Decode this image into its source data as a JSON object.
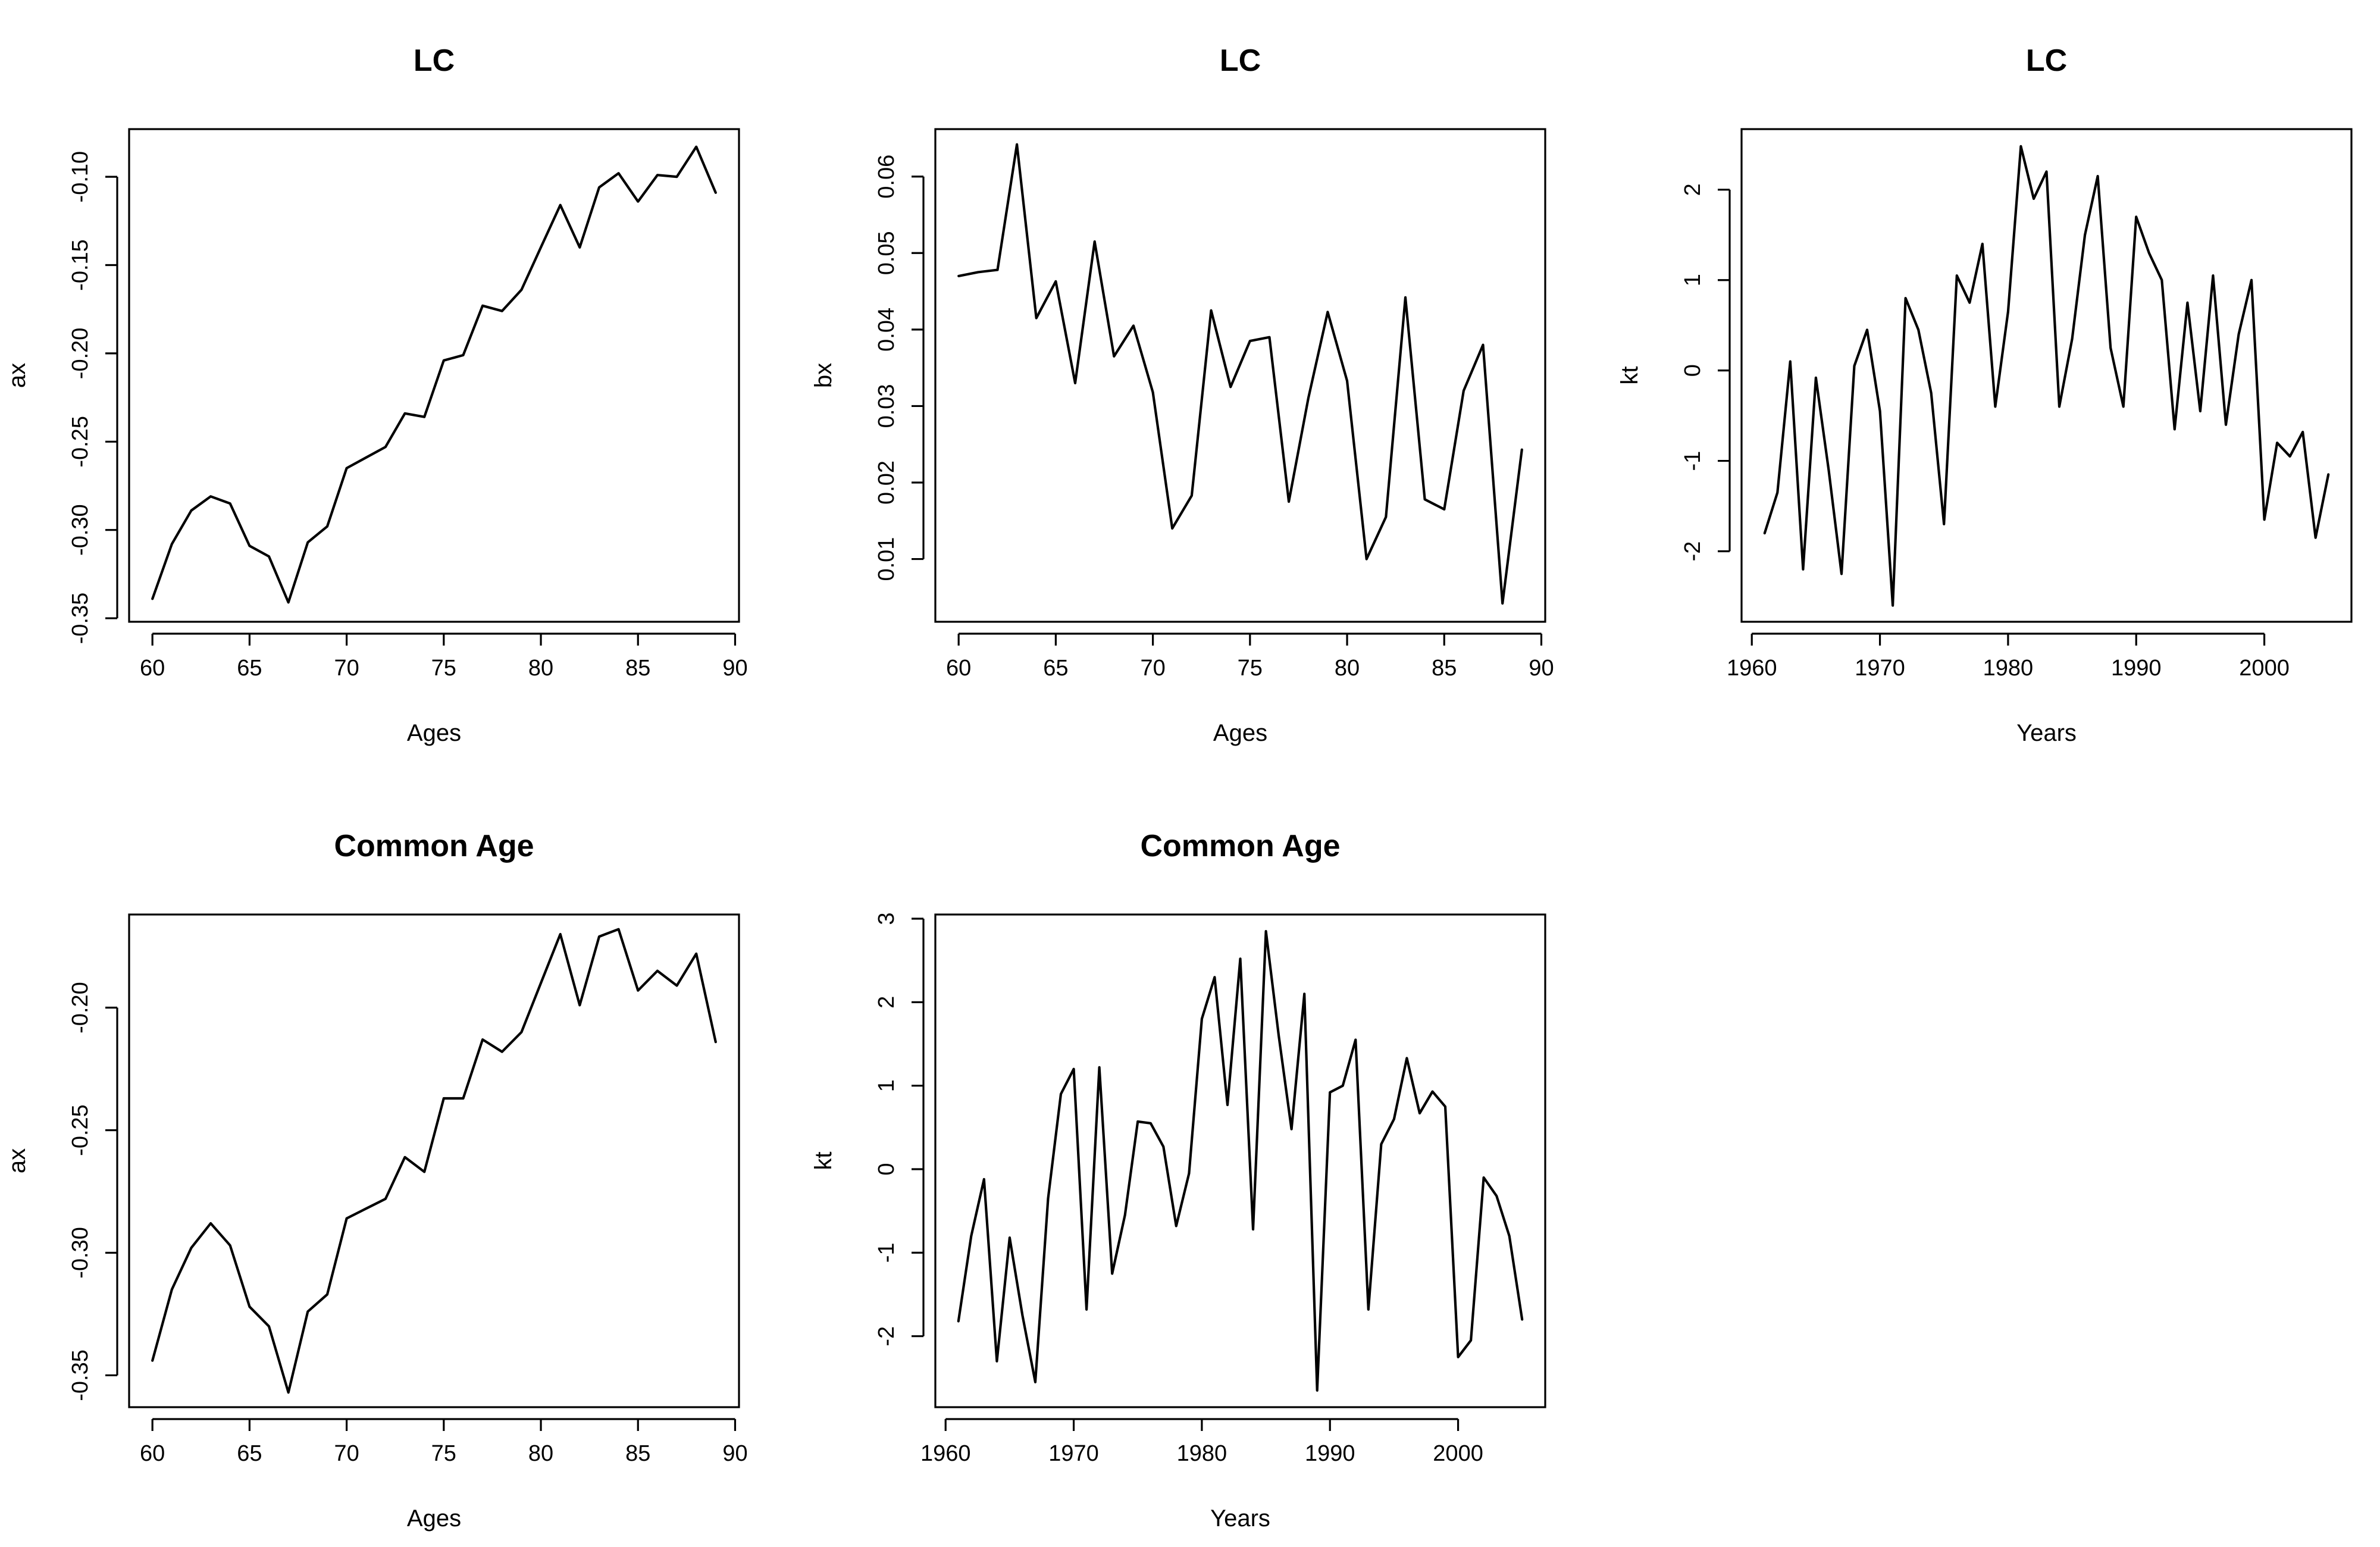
{
  "chart_data": [
    {
      "type": "line",
      "title": "LC",
      "xlabel": "Ages",
      "ylabel": "ax",
      "xlim": [
        58.8,
        90.2
      ],
      "ylim": [
        -0.352,
        -0.073
      ],
      "xticks": [
        60,
        65,
        70,
        75,
        80,
        85,
        90
      ],
      "xtick_labels": [
        "60",
        "65",
        "70",
        "75",
        "80",
        "85",
        "90"
      ],
      "yticks": [
        -0.35,
        -0.3,
        -0.25,
        -0.2,
        -0.15,
        -0.1
      ],
      "ytick_labels": [
        "-0.35",
        "-0.30",
        "-0.25",
        "-0.20",
        "-0.15",
        "-0.10"
      ],
      "grid": false,
      "x": [
        60,
        61,
        62,
        63,
        64,
        65,
        66,
        67,
        68,
        69,
        70,
        71,
        72,
        73,
        74,
        75,
        76,
        77,
        78,
        79,
        80,
        81,
        82,
        83,
        84,
        85,
        86,
        87,
        88,
        89
      ],
      "values": [
        -0.339,
        -0.308,
        -0.289,
        -0.281,
        -0.285,
        -0.309,
        -0.315,
        -0.341,
        -0.307,
        -0.298,
        -0.265,
        -0.259,
        -0.253,
        -0.234,
        -0.236,
        -0.204,
        -0.201,
        -0.173,
        -0.176,
        -0.164,
        -0.14,
        -0.116,
        -0.14,
        -0.106,
        -0.098,
        -0.114,
        -0.099,
        -0.1,
        -0.083,
        -0.109
      ]
    },
    {
      "type": "line",
      "title": "LC",
      "xlabel": "Ages",
      "ylabel": "bx",
      "xlim": [
        58.8,
        90.2
      ],
      "ylim": [
        0.0018,
        0.0662
      ],
      "xticks": [
        60,
        65,
        70,
        75,
        80,
        85,
        90
      ],
      "xtick_labels": [
        "60",
        "65",
        "70",
        "75",
        "80",
        "85",
        "90"
      ],
      "yticks": [
        0.01,
        0.02,
        0.03,
        0.04,
        0.05,
        0.06
      ],
      "ytick_labels": [
        "0.01",
        "0.02",
        "0.03",
        "0.04",
        "0.05",
        "0.06"
      ],
      "grid": false,
      "x": [
        60,
        61,
        62,
        63,
        64,
        65,
        66,
        67,
        68,
        69,
        70,
        71,
        72,
        73,
        74,
        75,
        76,
        77,
        78,
        79,
        80,
        81,
        82,
        83,
        84,
        85,
        86,
        87,
        88,
        89
      ],
      "values": [
        0.047,
        0.0475,
        0.0478,
        0.0642,
        0.0415,
        0.0463,
        0.033,
        0.0515,
        0.0365,
        0.0405,
        0.0318,
        0.014,
        0.0183,
        0.0425,
        0.0325,
        0.0385,
        0.039,
        0.0175,
        0.031,
        0.0423,
        0.0333,
        0.01,
        0.0155,
        0.0442,
        0.0178,
        0.0165,
        0.032,
        0.038,
        0.0042,
        0.0243
      ]
    },
    {
      "type": "line",
      "title": "LC",
      "xlabel": "Years",
      "ylabel": "kt",
      "xlim": [
        1959.2,
        2006.8
      ],
      "ylim": [
        -2.78,
        2.67
      ],
      "xticks": [
        1960,
        1970,
        1980,
        1990,
        2000
      ],
      "xtick_labels": [
        "1960",
        "1970",
        "1980",
        "1990",
        "2000"
      ],
      "yticks": [
        -2,
        -1,
        0,
        1,
        2
      ],
      "ytick_labels": [
        "-2",
        "-1",
        "0",
        "1",
        "2"
      ],
      "grid": false,
      "x": [
        1961,
        1962,
        1963,
        1964,
        1965,
        1966,
        1967,
        1968,
        1969,
        1970,
        1971,
        1972,
        1973,
        1974,
        1975,
        1976,
        1977,
        1978,
        1979,
        1980,
        1981,
        1982,
        1983,
        1984,
        1985,
        1986,
        1987,
        1988,
        1989,
        1990,
        1991,
        1992,
        1993,
        1994,
        1995,
        1996,
        1997,
        1998,
        1999,
        2000,
        2001,
        2002,
        2003,
        2004,
        2005
      ],
      "values": [
        -1.8,
        -1.35,
        0.1,
        -2.2,
        -0.08,
        -1.1,
        -2.25,
        0.05,
        0.45,
        -0.45,
        -2.6,
        0.8,
        0.45,
        -0.25,
        -1.7,
        1.05,
        0.75,
        1.4,
        -0.4,
        0.65,
        2.48,
        1.9,
        2.2,
        -0.4,
        0.35,
        1.5,
        2.15,
        0.25,
        -0.4,
        1.7,
        1.3,
        1.0,
        -0.65,
        0.75,
        -0.45,
        1.05,
        -0.6,
        0.4,
        1.0,
        -1.65,
        -0.8,
        -0.95,
        -0.68,
        -1.85,
        -1.15
      ]
    },
    {
      "type": "line",
      "title": "Common Age",
      "xlabel": "Ages",
      "ylabel": "ax",
      "xlim": [
        58.8,
        90.2
      ],
      "ylim": [
        -0.363,
        -0.162
      ],
      "xticks": [
        60,
        65,
        70,
        75,
        80,
        85,
        90
      ],
      "xtick_labels": [
        "60",
        "65",
        "70",
        "75",
        "80",
        "85",
        "90"
      ],
      "yticks": [
        -0.35,
        -0.3,
        -0.25,
        -0.2
      ],
      "ytick_labels": [
        "-0.35",
        "-0.30",
        "-0.25",
        "-0.20"
      ],
      "grid": false,
      "x": [
        60,
        61,
        62,
        63,
        64,
        65,
        66,
        67,
        68,
        69,
        70,
        71,
        72,
        73,
        74,
        75,
        76,
        77,
        78,
        79,
        80,
        81,
        82,
        83,
        84,
        85,
        86,
        87,
        88,
        89
      ],
      "values": [
        -0.344,
        -0.315,
        -0.298,
        -0.288,
        -0.297,
        -0.322,
        -0.33,
        -0.357,
        -0.324,
        -0.317,
        -0.286,
        -0.282,
        -0.278,
        -0.261,
        -0.267,
        -0.237,
        -0.237,
        -0.213,
        -0.218,
        -0.21,
        -0.19,
        -0.17,
        -0.199,
        -0.171,
        -0.168,
        -0.193,
        -0.185,
        -0.191,
        -0.178,
        -0.214
      ]
    },
    {
      "type": "line",
      "title": "Common Age",
      "xlabel": "Years",
      "ylabel": "kt",
      "xlim": [
        1959.2,
        2006.8
      ],
      "ylim": [
        -2.85,
        3.05
      ],
      "xticks": [
        1960,
        1970,
        1980,
        1990,
        2000
      ],
      "xtick_labels": [
        "1960",
        "1970",
        "1980",
        "1990",
        "2000"
      ],
      "yticks": [
        -2,
        -1,
        0,
        1,
        2,
        3
      ],
      "ytick_labels": [
        "-2",
        "-1",
        "0",
        "1",
        "2",
        "3"
      ],
      "grid": false,
      "x": [
        1961,
        1962,
        1963,
        1964,
        1965,
        1966,
        1967,
        1968,
        1969,
        1970,
        1971,
        1972,
        1973,
        1974,
        1975,
        1976,
        1977,
        1978,
        1979,
        1980,
        1981,
        1982,
        1983,
        1984,
        1985,
        1986,
        1987,
        1988,
        1989,
        1990,
        1991,
        1992,
        1993,
        1994,
        1995,
        1996,
        1997,
        1998,
        1999,
        2000,
        2001,
        2002,
        2003,
        2004,
        2005
      ],
      "values": [
        -1.82,
        -0.8,
        -0.12,
        -2.3,
        -0.82,
        -1.75,
        -2.55,
        -0.35,
        0.9,
        1.2,
        -1.68,
        1.22,
        -1.25,
        -0.55,
        0.57,
        0.55,
        0.27,
        -0.68,
        -0.05,
        1.8,
        2.3,
        0.77,
        2.52,
        -0.72,
        2.85,
        1.6,
        0.48,
        2.1,
        -2.65,
        0.92,
        1.0,
        1.55,
        -1.68,
        0.3,
        0.6,
        1.33,
        0.67,
        0.93,
        0.75,
        -2.25,
        -2.05,
        -0.1,
        -0.32,
        -0.8,
        -1.8
      ]
    }
  ]
}
